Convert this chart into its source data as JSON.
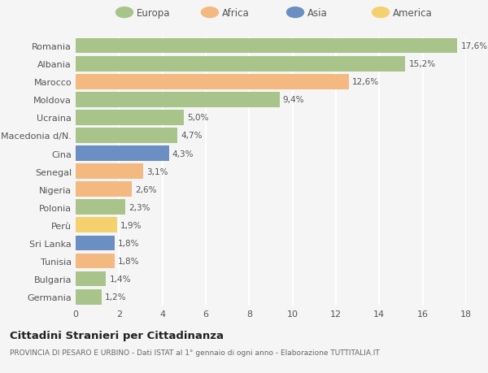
{
  "categories": [
    "Romania",
    "Albania",
    "Marocco",
    "Moldova",
    "Ucraina",
    "Macedonia d/N.",
    "Cina",
    "Senegal",
    "Nigeria",
    "Polonia",
    "Perù",
    "Sri Lanka",
    "Tunisia",
    "Bulgaria",
    "Germania"
  ],
  "values": [
    17.6,
    15.2,
    12.6,
    9.4,
    5.0,
    4.7,
    4.3,
    3.1,
    2.6,
    2.3,
    1.9,
    1.8,
    1.8,
    1.4,
    1.2
  ],
  "labels": [
    "17,6%",
    "15,2%",
    "12,6%",
    "9,4%",
    "5,0%",
    "4,7%",
    "4,3%",
    "3,1%",
    "2,6%",
    "2,3%",
    "1,9%",
    "1,8%",
    "1,8%",
    "1,4%",
    "1,2%"
  ],
  "colors": [
    "#a8c48a",
    "#a8c48a",
    "#f4b981",
    "#a8c48a",
    "#a8c48a",
    "#a8c48a",
    "#6b8fc2",
    "#f4b981",
    "#f4b981",
    "#a8c48a",
    "#f5d06e",
    "#6b8fc2",
    "#f4b981",
    "#a8c48a",
    "#a8c48a"
  ],
  "legend": [
    {
      "label": "Europa",
      "color": "#a8c48a"
    },
    {
      "label": "Africa",
      "color": "#f4b981"
    },
    {
      "label": "Asia",
      "color": "#6b8fc2"
    },
    {
      "label": "America",
      "color": "#f5d06e"
    }
  ],
  "title": "Cittadini Stranieri per Cittadinanza",
  "subtitle": "PROVINCIA DI PESARO E URBINO - Dati ISTAT al 1° gennaio di ogni anno - Elaborazione TUTTITALIA.IT",
  "xlim": [
    0,
    18
  ],
  "xticks": [
    0,
    2,
    4,
    6,
    8,
    10,
    12,
    14,
    16,
    18
  ],
  "background_color": "#f5f5f5",
  "grid_color": "#ffffff",
  "bar_height": 0.85
}
